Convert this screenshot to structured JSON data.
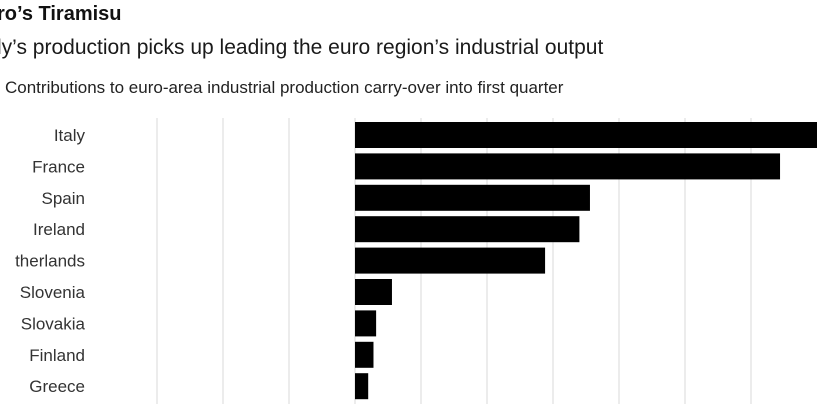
{
  "title": "ro’s Tiramisu",
  "subtitle": "ly’s production picks up leading the euro region’s industrial output",
  "caption": "Contributions to euro-area industrial production carry-over into first quarter",
  "colors": {
    "bar": "#000000",
    "grid": "#d9d9d9",
    "text": "#333333"
  },
  "chart_data": {
    "type": "bar",
    "orientation": "horizontal",
    "categories": [
      "Italy",
      "France",
      "Spain",
      "Ireland",
      "therlands",
      "Slovenia",
      "Slovakia",
      "Finland",
      "Greece"
    ],
    "values": [
      0.175,
      0.161,
      0.089,
      0.085,
      0.072,
      0.014,
      0.008,
      0.007,
      0.005
    ],
    "xlim": [
      -0.1,
      0.175
    ],
    "grid": true,
    "gridlines_x": [
      -0.075,
      -0.05,
      -0.025,
      0,
      0.025,
      0.05,
      0.075,
      0.1,
      0.125,
      0.15
    ]
  }
}
